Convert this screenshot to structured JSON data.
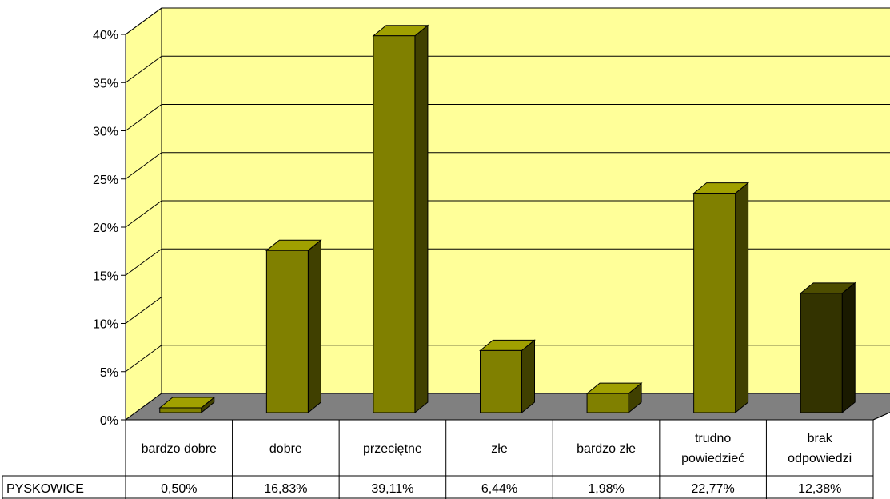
{
  "chart_data": {
    "type": "bar",
    "title": "",
    "xlabel": "",
    "ylabel": "",
    "ylim": [
      0,
      0.4
    ],
    "y_ticks": [
      0,
      0.05,
      0.1,
      0.15,
      0.2,
      0.25,
      0.3,
      0.35,
      0.4
    ],
    "y_tick_labels": [
      "0%",
      "5%",
      "10%",
      "15%",
      "20%",
      "25%",
      "30%",
      "35%",
      "40%"
    ],
    "grid": true,
    "legend": "none",
    "categories": [
      [
        "bardzo dobre"
      ],
      [
        "dobre"
      ],
      [
        "przeciętne"
      ],
      [
        "złe"
      ],
      [
        "bardzo złe"
      ],
      [
        "trudno",
        "powiedzieć"
      ],
      [
        "brak",
        "odpowiedzi"
      ]
    ],
    "series": [
      {
        "name": "PYSKOWICE",
        "values": [
          0.005,
          0.1683,
          0.3911,
          0.0644,
          0.0198,
          0.2277,
          0.1238
        ],
        "value_labels": [
          "0,50%",
          "16,83%",
          "39,11%",
          "6,44%",
          "1,98%",
          "22,77%",
          "12,38%"
        ]
      }
    ],
    "colors": {
      "wall": "#ffff99",
      "floor": "#808080",
      "bar": "#808000",
      "bar_top": "#a0a000",
      "bar_side": "#404000",
      "highlight_bar": "#333300",
      "highlight_bar_top": "#4d4d00",
      "highlight_bar_side": "#1a1a00"
    },
    "highlight_index": 6
  }
}
